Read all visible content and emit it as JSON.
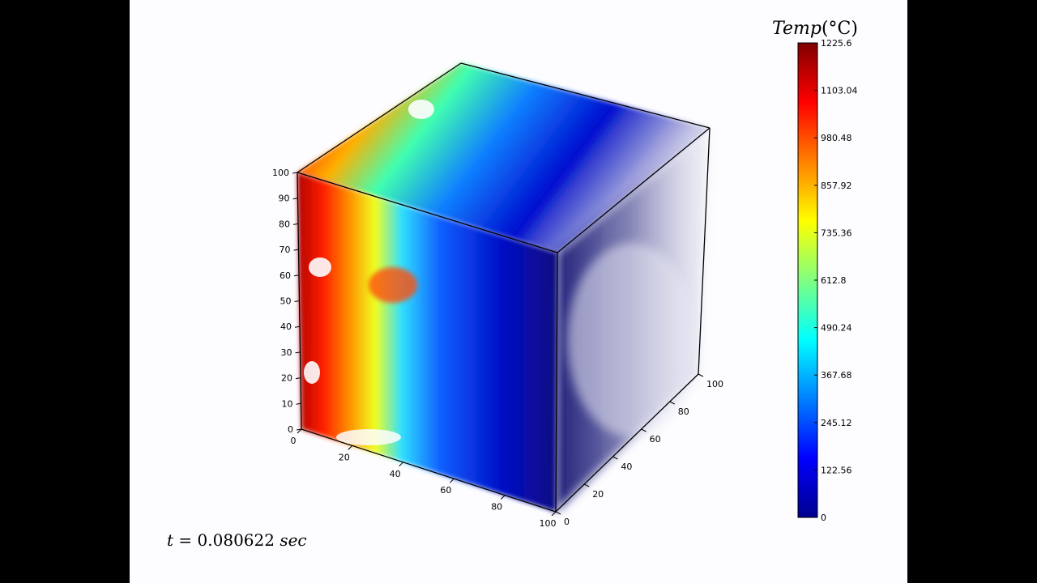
{
  "time_label": {
    "var": "t",
    "value": "0.080622",
    "unit": "sec"
  },
  "colorbar": {
    "title": "Temp(°C)",
    "title_var": "Temp",
    "title_unit": "(°C)",
    "ticks": [
      "1225.6",
      "1103.04",
      "980.48",
      "857.92",
      "735.36",
      "612.8",
      "490.24",
      "367.68",
      "245.12",
      "122.56",
      "0"
    ],
    "min": 0,
    "max": 1225.6,
    "colormap": [
      "#800000",
      "#ff0000",
      "#ff8000",
      "#ffff00",
      "#80ff80",
      "#00ffff",
      "#0080ff",
      "#0000ff",
      "#00008f"
    ]
  },
  "chart_data": {
    "type": "volume",
    "title": "",
    "axes": {
      "z": {
        "ticks": [
          "0",
          "10",
          "20",
          "30",
          "40",
          "50",
          "60",
          "70",
          "80",
          "90",
          "100"
        ],
        "range": [
          0,
          100
        ]
      },
      "x": {
        "ticks": [
          "0",
          "20",
          "40",
          "60",
          "80",
          "100"
        ],
        "range": [
          0,
          100
        ]
      },
      "y": {
        "ticks": [
          "0",
          "20",
          "40",
          "60",
          "80",
          "100"
        ],
        "range": [
          0,
          100
        ]
      }
    },
    "temperature_range": [
      0,
      1225.6
    ],
    "temperature_profile": {
      "description_values": [
        1225.6,
        980.48,
        735.36,
        490.24,
        245.12,
        122.56,
        0
      ]
    }
  }
}
